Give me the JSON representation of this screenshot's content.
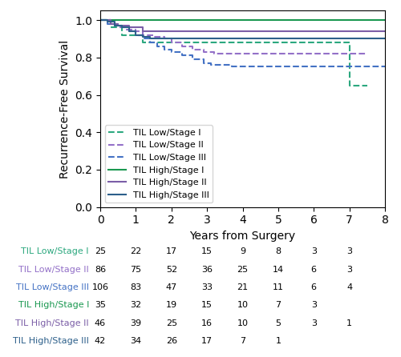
{
  "chart_data": {
    "type": "step",
    "ylabel": "Recurrence-Free Survival",
    "xlabel": "Years from Surgery",
    "xlim": [
      0,
      8
    ],
    "ylim": [
      0.0,
      1.05
    ],
    "xticks": [
      0,
      1,
      2,
      3,
      4,
      5,
      6,
      7,
      8
    ],
    "yticks": [
      0.0,
      0.2,
      0.4,
      0.6,
      0.8,
      1.0
    ],
    "grid": false,
    "legend": "lower left",
    "series": [
      {
        "name": "TIL Low/Stage I",
        "color": "#2ca87f",
        "line_style": "dashed",
        "x": [
          0,
          0.3,
          0.6,
          1.0,
          1.2,
          1.5,
          7.0,
          7.0,
          7.5
        ],
        "values": [
          1.0,
          0.96,
          0.92,
          0.92,
          0.88,
          0.88,
          0.88,
          0.65,
          0.65
        ]
      },
      {
        "name": "TIL Low/Stage II",
        "color": "#9370c8",
        "line_style": "dashed",
        "x": [
          0,
          0.3,
          0.5,
          0.7,
          1.0,
          1.2,
          1.5,
          1.8,
          2.0,
          2.3,
          2.6,
          2.9,
          3.2,
          3.5,
          7.5
        ],
        "values": [
          1.0,
          0.98,
          0.96,
          0.95,
          0.94,
          0.92,
          0.91,
          0.9,
          0.88,
          0.86,
          0.84,
          0.83,
          0.82,
          0.82,
          0.82
        ]
      },
      {
        "name": "TIL Low/Stage III",
        "color": "#4472c4",
        "line_style": "dashed",
        "x": [
          0,
          0.2,
          0.4,
          0.6,
          0.8,
          1.0,
          1.2,
          1.4,
          1.6,
          1.8,
          2.0,
          2.3,
          2.6,
          2.9,
          3.1,
          3.4,
          3.7,
          4.0,
          8.0
        ],
        "values": [
          1.0,
          0.98,
          0.97,
          0.96,
          0.94,
          0.92,
          0.9,
          0.88,
          0.86,
          0.84,
          0.83,
          0.81,
          0.79,
          0.77,
          0.76,
          0.76,
          0.75,
          0.75,
          0.75
        ]
      },
      {
        "name": "TIL High/Stage I",
        "color": "#1a9850",
        "line_style": "solid",
        "x": [
          0,
          8.0
        ],
        "values": [
          1.0,
          1.0
        ]
      },
      {
        "name": "TIL High/Stage II",
        "color": "#7b5ea7",
        "line_style": "solid",
        "x": [
          0,
          0.3,
          0.5,
          0.8,
          1.2,
          8.0
        ],
        "values": [
          1.0,
          0.98,
          0.97,
          0.96,
          0.94,
          0.94
        ]
      },
      {
        "name": "TIL High/Stage III",
        "color": "#2c5f8a",
        "line_style": "solid",
        "x": [
          0,
          0.2,
          0.4,
          0.6,
          0.8,
          1.0,
          1.2,
          1.4,
          8.0
        ],
        "values": [
          1.0,
          0.99,
          0.97,
          0.96,
          0.94,
          0.92,
          0.91,
          0.9,
          0.9
        ]
      }
    ],
    "risk_table": [
      {
        "name": "TIL Low/Stage I",
        "color": "#2ca87f",
        "values": [
          25,
          22,
          17,
          15,
          9,
          8,
          3,
          3,
          null
        ]
      },
      {
        "name": "TIL Low/Stage II",
        "color": "#9370c8",
        "values": [
          86,
          75,
          52,
          36,
          25,
          14,
          6,
          3,
          null
        ]
      },
      {
        "name": "TIL Low/Stage III",
        "color": "#4472c4",
        "values": [
          106,
          83,
          47,
          33,
          21,
          11,
          6,
          4,
          null
        ]
      },
      {
        "name": "TIL High/Stage I",
        "color": "#1a9850",
        "values": [
          35,
          32,
          19,
          15,
          10,
          7,
          3,
          null,
          null
        ]
      },
      {
        "name": "TIL High/Stage II",
        "color": "#7b5ea7",
        "values": [
          46,
          39,
          25,
          16,
          10,
          5,
          3,
          1,
          null
        ]
      },
      {
        "name": "TIL High/Stage III",
        "color": "#2c5f8a",
        "values": [
          42,
          34,
          26,
          17,
          7,
          1,
          null,
          null,
          null
        ]
      }
    ]
  }
}
